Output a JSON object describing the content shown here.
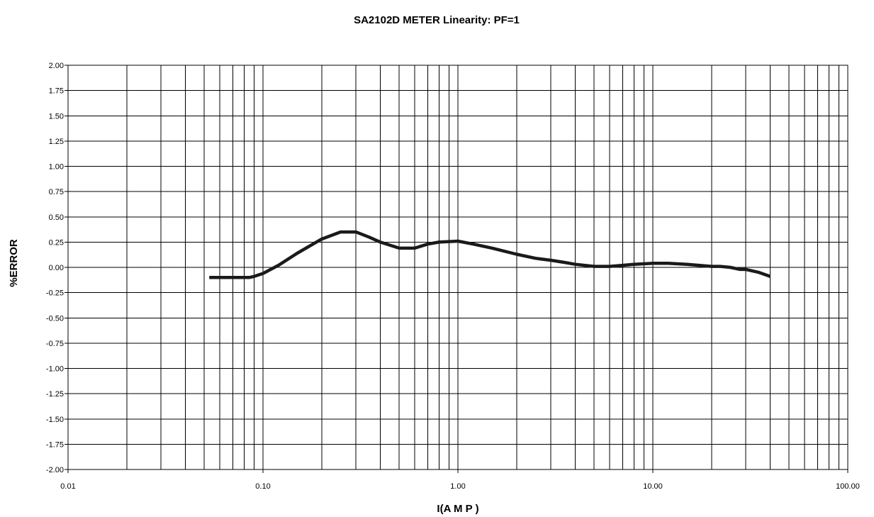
{
  "chart_data": {
    "type": "line",
    "title": "SA2102D METER Linearity: PF=1",
    "xlabel": "I(A M P )",
    "ylabel": "%ERROR",
    "xscale": "log",
    "xlim": [
      0.01,
      100
    ],
    "ylim": [
      -2.0,
      2.0
    ],
    "x_ticks": [
      0.01,
      0.1,
      1,
      10,
      100
    ],
    "x_tick_labels": [
      "0.01",
      "0.10",
      "1.00",
      "10.00",
      "100.00"
    ],
    "y_ticks": [
      2.0,
      1.75,
      1.5,
      1.25,
      1.0,
      0.75,
      0.5,
      0.25,
      0.0,
      -0.25,
      -0.5,
      -0.75,
      -1.0,
      -1.25,
      -1.5,
      -1.75,
      -2.0
    ],
    "y_tick_labels": [
      "2.00",
      "1.75",
      "1.50",
      "1.25",
      "1.00",
      "0.75",
      "0.50",
      "0.25",
      "0.00",
      "-0.25",
      "-0.50",
      "-0.75",
      "-1.00",
      "-1.25",
      "-1.50",
      "-1.75",
      "-2.00"
    ],
    "grid": true,
    "legend": "none",
    "line_color": "#1a1a1a",
    "series": [
      {
        "x": [
          0.053,
          0.06,
          0.07,
          0.08,
          0.085,
          0.09,
          0.1,
          0.12,
          0.15,
          0.2,
          0.25,
          0.3,
          0.35,
          0.4,
          0.5,
          0.6,
          0.7,
          0.8,
          1.0,
          1.2,
          1.5,
          2.0,
          2.5,
          3.0,
          3.5,
          4.0,
          5.0,
          6.0,
          7.0,
          8.0,
          10.0,
          12.0,
          15.0,
          20.0,
          22.0,
          25.0,
          28.0,
          30.0,
          35.0,
          40.0
        ],
        "y": [
          -0.1,
          -0.1,
          -0.1,
          -0.1,
          -0.1,
          -0.09,
          -0.06,
          0.02,
          0.14,
          0.28,
          0.35,
          0.35,
          0.3,
          0.25,
          0.19,
          0.19,
          0.23,
          0.25,
          0.26,
          0.23,
          0.19,
          0.13,
          0.09,
          0.07,
          0.05,
          0.03,
          0.01,
          0.01,
          0.02,
          0.03,
          0.04,
          0.04,
          0.03,
          0.01,
          0.01,
          0.0,
          -0.02,
          -0.02,
          -0.05,
          -0.09
        ]
      }
    ]
  }
}
